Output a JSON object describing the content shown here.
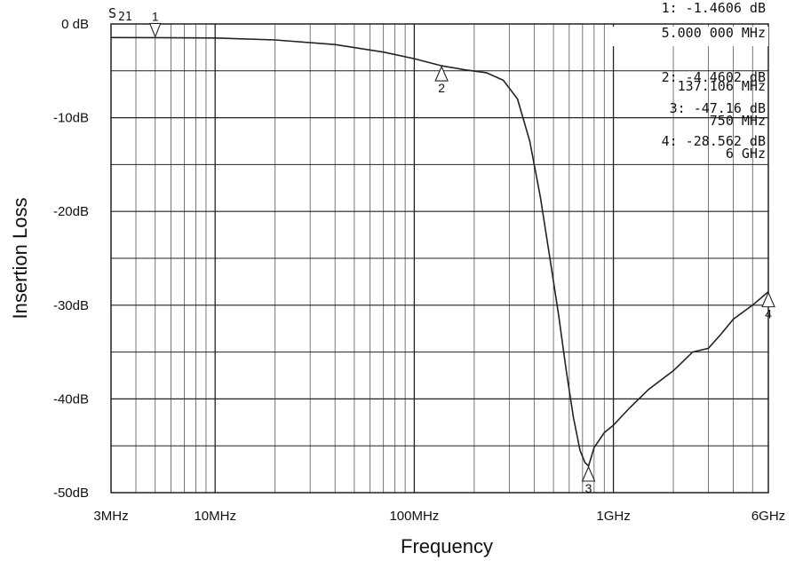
{
  "chart_data": {
    "type": "line",
    "xlabel": "Frequency",
    "ylabel": "Insertion Loss",
    "x_scale": "log",
    "xlim_hz": [
      3000000,
      6000000000
    ],
    "ylim": [
      -50,
      0
    ],
    "grid": true,
    "trace_label": "S21",
    "y_ticks": [
      {
        "value": 0,
        "label": "0 dB"
      },
      {
        "value": -10,
        "label": "-10dB"
      },
      {
        "value": -20,
        "label": "-20dB"
      },
      {
        "value": -30,
        "label": "-30dB"
      },
      {
        "value": -40,
        "label": "-40dB"
      },
      {
        "value": -50,
        "label": "-50dB"
      }
    ],
    "x_ticks": [
      {
        "value": 3000000,
        "label": "3MHz"
      },
      {
        "value": 10000000,
        "label": "10MHz"
      },
      {
        "value": 100000000,
        "label": "100MHz"
      },
      {
        "value": 1000000000,
        "label": "1GHz"
      },
      {
        "value": 6000000000,
        "label": "6GHz"
      }
    ],
    "series": [
      {
        "x": [
          3000000,
          5000000,
          10000000,
          20000000,
          40000000,
          70000000,
          100000000,
          137106000,
          180000000,
          230000000,
          280000000,
          330000000,
          380000000,
          430000000,
          480000000,
          530000000,
          580000000,
          630000000,
          680000000,
          720000000,
          750000000,
          800000000,
          900000000,
          1000000000,
          1200000000,
          1500000000,
          2000000000,
          2500000000,
          3000000000,
          3500000000,
          4000000000,
          5000000000,
          6000000000
        ],
        "y": [
          -1.45,
          -1.46,
          -1.5,
          -1.7,
          -2.2,
          -3.0,
          -3.7,
          -4.46,
          -4.9,
          -5.2,
          -6.0,
          -8.0,
          -12.5,
          -18.5,
          -25.0,
          -31.0,
          -37.0,
          -42.0,
          -45.5,
          -46.8,
          -47.16,
          -45.2,
          -43.6,
          -42.8,
          -41.0,
          -39.0,
          -37.0,
          -35.0,
          -34.6,
          -33.0,
          -31.5,
          -30.0,
          -28.56
        ]
      }
    ],
    "markers": [
      {
        "id": "1",
        "freq_hz": 5000000,
        "value_db": -1.4606
      },
      {
        "id": "2",
        "freq_hz": 137106000,
        "value_db": -4.4602
      },
      {
        "id": "3",
        "freq_hz": 750000000,
        "value_db": -47.16
      },
      {
        "id": "4",
        "freq_hz": 6000000000,
        "value_db": -28.562
      }
    ],
    "readouts": [
      {
        "id": "1",
        "text": "1: -1.4606 dB",
        "text2": "5.000 000 MHz"
      },
      {
        "id": "2",
        "text": "2: -4.4602 dB",
        "text2": "137.106 MHz"
      },
      {
        "id": "3",
        "text": "3: -47.16  dB",
        "text2": "750 MHz"
      },
      {
        "id": "4",
        "text": "4: -28.562 dB",
        "text2": "6 GHz"
      }
    ]
  }
}
